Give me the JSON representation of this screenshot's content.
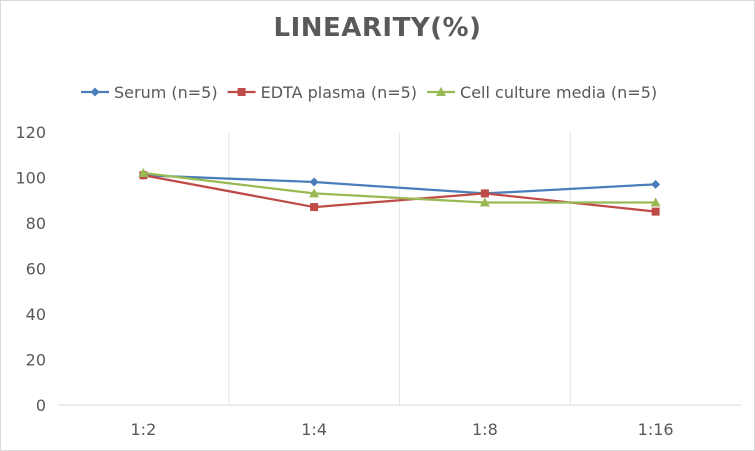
{
  "chart_data": {
    "type": "line",
    "title": "LINEARITY(%)",
    "xlabel": "",
    "ylabel": "",
    "categories": [
      "1:2",
      "1:4",
      "1:8",
      "1:16"
    ],
    "ylim": [
      0,
      120
    ],
    "yticks": [
      0,
      20,
      40,
      60,
      80,
      100,
      120
    ],
    "grid": "vertical",
    "legend_position": "top",
    "series": [
      {
        "name": "Serum (n=5)",
        "values": [
          101,
          98,
          93,
          97
        ],
        "color": "#4a7ebb",
        "marker": "diamond"
      },
      {
        "name": "EDTA plasma (n=5)",
        "values": [
          101,
          87,
          93,
          85
        ],
        "color": "#be4b48",
        "marker": "square"
      },
      {
        "name": "Cell culture media (n=5)",
        "values": [
          102,
          93,
          89,
          89
        ],
        "color": "#98b954",
        "marker": "triangle"
      }
    ]
  }
}
